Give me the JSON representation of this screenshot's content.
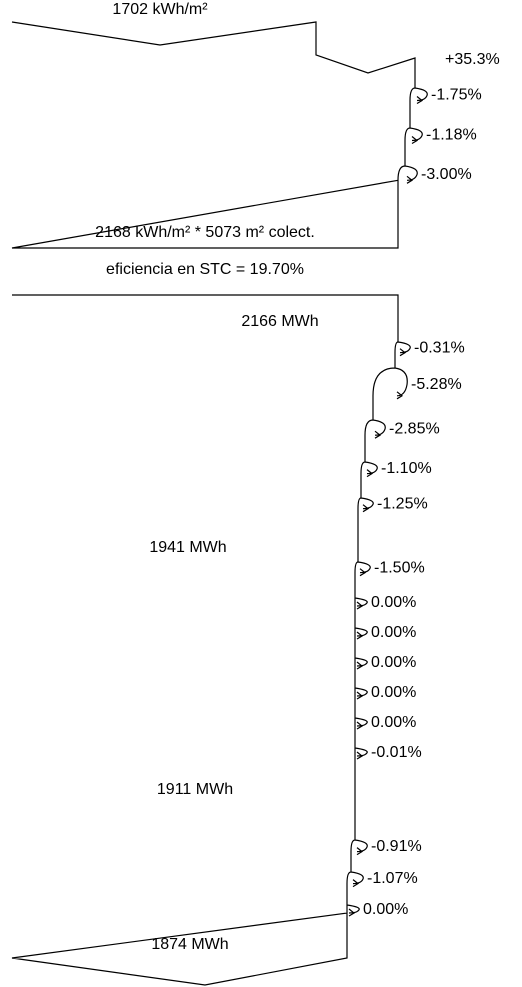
{
  "top": {
    "input": "1702 kWh/m²",
    "gain": "+35.3%",
    "losses": [
      "-1.75%",
      "-1.18%",
      "-3.00%"
    ],
    "output": "2168 kWh/m² * 5073 m² colect."
  },
  "efficiency": "eficiencia en STC = 19.70%",
  "bottom": {
    "levels": [
      "2166 MWh",
      "1941 MWh",
      "1911 MWh",
      "1874 MWh"
    ],
    "losses": [
      "-0.31%",
      "-5.28%",
      "-2.85%",
      "-1.10%",
      "-1.25%",
      "-1.50%",
      "0.00%",
      "0.00%",
      "0.00%",
      "0.00%",
      "0.00%",
      "-0.01%",
      "-0.91%",
      "-1.07%",
      "0.00%"
    ]
  }
}
